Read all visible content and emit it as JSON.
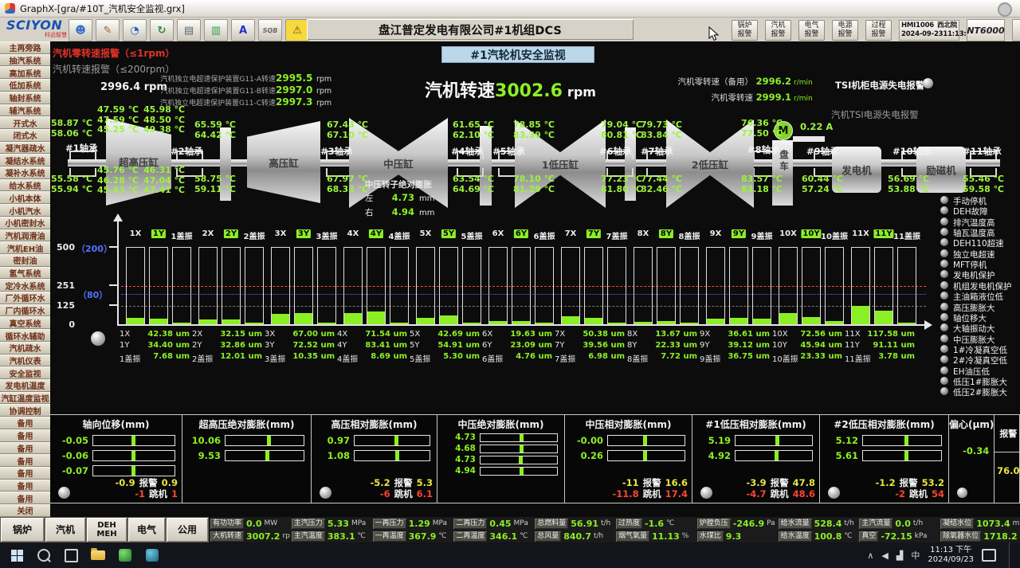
{
  "window": {
    "title": "GraphX-[gra/#10T_汽机安全监视.grx]"
  },
  "toolbar": {
    "brand": "SCIYON",
    "brand_sub": "科远智慧",
    "icons": [
      {
        "name": "user-group-icon",
        "glyph": "☻",
        "color": "#3a6fd0"
      },
      {
        "name": "graphic-editor-icon",
        "glyph": "✎",
        "color": "#a85a28"
      },
      {
        "name": "trend-view-icon",
        "glyph": "◔",
        "color": "#2a5fc4"
      },
      {
        "name": "history-recall-icon",
        "glyph": "↻",
        "color": "#2e8b3a"
      },
      {
        "name": "report-icon",
        "glyph": "▤",
        "color": "#5a6670"
      },
      {
        "name": "ledger-icon",
        "glyph": "▥",
        "color": "#2f9e52"
      },
      {
        "name": "formula-icon",
        "glyph": "A",
        "color": "#2233c0"
      },
      {
        "name": "sqb-tool-icon",
        "glyph": "SQB",
        "color": "#6a6a62"
      },
      {
        "name": "alarm-bell-icon",
        "glyph": "⚠",
        "color": "#7a4a00",
        "bg": "#f5d93e"
      }
    ],
    "center_title": "盘江普定发电有限公司#1机组DCS",
    "alarm_buttons": [
      {
        "line1": "锅炉",
        "line2": "报警"
      },
      {
        "line1": "汽机",
        "line2": "报警"
      },
      {
        "line1": "电气",
        "line2": "报警"
      },
      {
        "line1": "电源",
        "line2": "报警"
      },
      {
        "line1": "过程",
        "line2": "报警"
      }
    ],
    "hmi_id": "HMI1006",
    "station": "西北院",
    "date": "2024-09-23",
    "time": "11:13:20",
    "system": "NT6000",
    "close_label": "✕"
  },
  "left_nav": [
    "主再旁路",
    "抽汽系统",
    "高加系统",
    "低加系统",
    "轴封系统",
    "辅汽系统",
    "开式水",
    "闭式水",
    "凝汽器疏水",
    "凝结水系统",
    "凝补水系统",
    "给水系统",
    "小机本体",
    "小机汽水",
    "小机密封水",
    "汽机润滑油",
    "汽机EH油",
    "密封油",
    "氢气系统",
    "定冷水系统",
    "厂外循环水",
    "厂内循环水",
    "真空系统",
    "循环水辅助",
    "汽机疏水",
    "汽机仪表",
    "安全监视",
    "发电机温度",
    "汽缸温度监视",
    "协调控制",
    "备用",
    "备用",
    "备用",
    "备用",
    "备用",
    "备用",
    "备用",
    "关闭"
  ],
  "header": {
    "zero_alarm": "汽机零转速报警（≤1rpm）",
    "speed_alarm": "汽机转速报警（≤200rpm）",
    "aux_speed": "2996.4 rpm",
    "overspeed": [
      {
        "label": "汽机独立电超速保护装置G11-A转速",
        "value": "2995.5",
        "unit": "rpm"
      },
      {
        "label": "汽机独立电超速保护装置G11-B转速",
        "value": "2997.0",
        "unit": "rpm"
      },
      {
        "label": "汽机独立电超速保护装置G11-C转速",
        "value": "2997.3",
        "unit": "rpm"
      }
    ],
    "page_title": "#1汽轮机安全监视",
    "speed_label": "汽机转速",
    "speed_value": "3002.6",
    "speed_unit": "rpm",
    "zero_rows": [
      {
        "label": "汽机零转速（备用）",
        "value": "2996.2",
        "unit": "r/min"
      },
      {
        "label": "汽机零转速",
        "value": "2999.1",
        "unit": "r/min"
      }
    ],
    "tsi_cabinet_alarm": "TSI机柜电源失电报警",
    "tsi_power_alarm": "汽机TSI电源失电报警"
  },
  "turbine": {
    "temp_unit": "℃",
    "bearings": [
      {
        "label": "#1轴承",
        "top": [
          "58.87",
          "58.06"
        ],
        "bottom": [
          "55.58",
          "55.94"
        ]
      },
      {
        "label": "#2轴承",
        "top": [
          "65.59",
          "64.42"
        ],
        "bottom": [
          "58.75",
          "59.11"
        ]
      },
      {
        "label": "#3轴承",
        "top": [
          "67.43",
          "67.10"
        ],
        "bottom": [
          "67.97",
          "68.33"
        ]
      },
      {
        "label": "#4轴承",
        "top": [
          "61.65",
          "62.10"
        ],
        "bottom": [
          "63.54",
          "64.69"
        ]
      },
      {
        "label": "#5轴承",
        "top": [
          "78.85",
          "83.39"
        ],
        "bottom": [
          "78.10",
          "81.29"
        ]
      },
      {
        "label": "#6轴承",
        "top": [
          "79.04",
          "80.81"
        ],
        "bottom": [
          "77.23",
          "81.80"
        ]
      },
      {
        "label": "#7轴承",
        "top": [
          "79.73",
          "83.84"
        ],
        "bottom": [
          "77.44",
          "82.46"
        ]
      },
      {
        "label": "#8轴承",
        "top": [
          "76.36",
          "77.50"
        ],
        "bottom": [
          "83.57",
          "83.18"
        ]
      },
      {
        "label": "#9轴承",
        "top": [],
        "bottom": [
          "60.44",
          "57.24"
        ]
      },
      {
        "label": "#10轴承",
        "top": [],
        "bottom": [
          "56.69",
          "53.88"
        ]
      },
      {
        "label": "#11轴承",
        "top": [],
        "bottom": [
          "55.46",
          "59.58"
        ]
      }
    ],
    "uhp_temps": {
      "top_left": [
        "47.59",
        "47.59",
        "45.25"
      ],
      "top_right": [
        "45.98",
        "48.50",
        "49.38"
      ],
      "bottom_left": [
        "45.76",
        "46.28",
        "45.43"
      ],
      "bottom_right": [
        "46.31",
        "47.04",
        "47.41"
      ]
    },
    "cylinders": [
      {
        "label": "超高压缸"
      },
      {
        "label": "高压缸"
      },
      {
        "label": "中压缸"
      },
      {
        "label": "1低压缸"
      },
      {
        "label": "2低压缸"
      },
      {
        "label": "发电机"
      },
      {
        "label": "励磁机"
      }
    ],
    "turning_gear": {
      "label": "盘车",
      "motor_symbol": "M",
      "current": "0.22",
      "current_unit": "A"
    },
    "ip_expansion": {
      "title": "中压转子绝对膨胀",
      "rows": [
        {
          "label": "左",
          "value": "4.73",
          "unit": "mm"
        },
        {
          "label": "右",
          "value": "4.94",
          "unit": "mm"
        }
      ]
    }
  },
  "chart_data": {
    "type": "bar",
    "title": "",
    "unit": "um",
    "categories": [
      "1X",
      "1Y",
      "1盖振",
      "2X",
      "2Y",
      "2盖振",
      "3X",
      "3Y",
      "3盖振",
      "4X",
      "4Y",
      "4盖振",
      "5X",
      "5Y",
      "5盖振",
      "6X",
      "6Y",
      "6盖振",
      "7X",
      "7Y",
      "7盖振",
      "8X",
      "8Y",
      "8盖振",
      "9X",
      "9Y",
      "9盖振",
      "10X",
      "10Y",
      "10盖振",
      "11X",
      "11Y",
      "11盖振"
    ],
    "values": [
      "42.38",
      "34.40",
      "7.68",
      "32.15",
      "32.86",
      "12.01",
      "67.00",
      "72.52",
      "10.35",
      "71.54",
      "83.41",
      "8.69",
      "42.69",
      "54.91",
      "5.30",
      "19.63",
      "23.09",
      "4.76",
      "50.38",
      "39.56",
      "6.98",
      "13.67",
      "22.33",
      "7.72",
      "36.61",
      "39.12",
      "36.75",
      "72.56",
      "45.94",
      "23.33",
      "117.58",
      "91.11",
      "3.78"
    ],
    "ylim": [
      0,
      500
    ],
    "axis_labels": [
      {
        "text": "500",
        "secondary": false
      },
      {
        "text": "（200）",
        "secondary": true
      },
      {
        "text": "251",
        "secondary": false
      },
      {
        "text": "（80）",
        "secondary": true
      },
      {
        "text": "125",
        "secondary": false
      },
      {
        "text": "0",
        "secondary": false
      }
    ],
    "reference_lines": [
      {
        "y": 251,
        "color": "#ff4444",
        "style": "dashed"
      },
      {
        "y": 200,
        "color": "#5570ff",
        "style": "dotted"
      },
      {
        "y": 125,
        "color": "#cfcfcf",
        "style": "dashed"
      }
    ],
    "grid": false,
    "legend": false
  },
  "right_alarms": [
    "手动停机",
    "DEH故障",
    "排汽温度高",
    "轴瓦温度高",
    "DEH110超速",
    "独立电超速",
    "MFT停机",
    "发电机保护",
    "机组发电机保护",
    "主油箱液位低",
    "高压膨胀大",
    "轴位移大",
    "大轴振动大",
    "中压膨胀大",
    "1#冷凝真空低",
    "2#冷凝真空低",
    "EH油压低",
    "低压1#膨胀大",
    "低压2#膨胀大"
  ],
  "panels": [
    {
      "title": "轴向位移(mm)",
      "split": true,
      "indicator": true,
      "gauges": [
        {
          "v": "-0.05",
          "pct": 49
        },
        {
          "v": "-0.06",
          "pct": 49
        },
        {
          "v": "-0.07",
          "pct": 49
        }
      ],
      "alarm": {
        "low": "-0.9",
        "label": "报警",
        "high": "0.9"
      },
      "trip": {
        "low": "-1",
        "label": "跳机",
        "high": "1"
      }
    },
    {
      "title": "超高压绝对膨胀(mm)",
      "split": false,
      "indicator": false,
      "gauges": [
        {
          "v": "10.06",
          "pct": 55
        },
        {
          "v": "9.53",
          "pct": 53
        }
      ]
    },
    {
      "title": "高压相对膨胀(mm)",
      "split": false,
      "indicator": true,
      "gauges": [
        {
          "v": "0.97",
          "pct": 55
        },
        {
          "v": "1.08",
          "pct": 56
        }
      ],
      "alarm": {
        "low": "-5.2",
        "label": "报警",
        "high": "5.3"
      },
      "trip": {
        "low": "-6",
        "label": "跳机",
        "high": "6.1"
      }
    },
    {
      "title": "中压绝对膨胀(mm)",
      "split": false,
      "indicator": false,
      "gauges": [
        {
          "v": "4.73",
          "pct": 53
        },
        {
          "v": "4.68",
          "pct": 53
        },
        {
          "v": "4.73",
          "pct": 52
        },
        {
          "v": "4.94",
          "pct": 53
        }
      ]
    },
    {
      "title": "中压相对膨胀(mm)",
      "split": true,
      "indicator": false,
      "gauges": [
        {
          "v": "-0.00",
          "pct": 48
        },
        {
          "v": "0.26",
          "pct": 48
        }
      ],
      "alarm": {
        "low": "-11",
        "label": "报警",
        "high": "16.6"
      },
      "trip": {
        "low": "-11.8",
        "label": "跳机",
        "high": "17.4"
      }
    },
    {
      "title": "#1低压相对膨胀(mm)",
      "split": false,
      "indicator": true,
      "gauges": [
        {
          "v": "5.19",
          "pct": 54
        },
        {
          "v": "4.92",
          "pct": 53
        }
      ],
      "alarm": {
        "low": "-3.9",
        "label": "报警",
        "high": "47.8"
      },
      "trip": {
        "low": "-4.7",
        "label": "跳机",
        "high": "48.6"
      }
    },
    {
      "title": "#2低压相对膨胀(mm)",
      "split": false,
      "indicator": true,
      "gauges": [
        {
          "v": "5.12",
          "pct": 55
        },
        {
          "v": "5.61",
          "pct": 55
        }
      ],
      "alarm": {
        "low": "-1.2",
        "label": "报警",
        "high": "53.2"
      },
      "trip": {
        "low": "-2",
        "label": "跳机",
        "high": "54"
      }
    }
  ],
  "eccentricity": {
    "title": "偏心(μm)",
    "value": "-0.34",
    "alarm_label": "报警",
    "alarm_value": "76.0",
    "indicator": true
  },
  "bottom_tabs": [
    {
      "label": "锅炉"
    },
    {
      "label": "汽机"
    },
    {
      "label": "DEH\nMEH"
    },
    {
      "label": "电气"
    },
    {
      "label": "公用"
    }
  ],
  "params": {
    "row1": [
      {
        "label": "有功功率",
        "value": "0.0",
        "unit": "MW"
      },
      {
        "label": "主汽压力",
        "value": "5.33",
        "unit": "MPa"
      },
      {
        "label": "一再压力",
        "value": "1.29",
        "unit": "MPa"
      },
      {
        "label": "二再压力",
        "value": "0.45",
        "unit": "MPa"
      },
      {
        "label": "总燃料量",
        "value": "56.91",
        "unit": "t/h"
      },
      {
        "label": "过热度",
        "value": "-1.6",
        "unit": "℃"
      },
      {
        "label": "炉膛负压",
        "value": "-246.9",
        "unit": "Pa"
      },
      {
        "label": "给水流量",
        "value": "528.4",
        "unit": "t/h"
      },
      {
        "label": "主汽流量",
        "value": "0.0",
        "unit": "t/h"
      },
      {
        "label": "凝结水位",
        "value": "1073.4",
        "unit": "mm"
      }
    ],
    "row2": [
      {
        "label": "大机转速",
        "value": "3007.2",
        "unit": "rpm"
      },
      {
        "label": "主汽温度",
        "value": "383.1",
        "unit": "℃"
      },
      {
        "label": "一再温度",
        "value": "367.9",
        "unit": "℃"
      },
      {
        "label": "二再温度",
        "value": "346.1",
        "unit": "℃"
      },
      {
        "label": "总风量",
        "value": "840.7",
        "unit": "t/h"
      },
      {
        "label": "烟气氧量",
        "value": "11.13",
        "unit": "%"
      },
      {
        "label": "水煤比",
        "value": "9.3",
        "unit": ""
      },
      {
        "label": "给水温度",
        "value": "100.8",
        "unit": "℃"
      },
      {
        "label": "真空",
        "value": "-72.15",
        "unit": "kPa"
      },
      {
        "label": "除氧器水位",
        "value": "1718.2",
        "unit": "mm"
      }
    ]
  },
  "taskbar": {
    "time": "11:13 下午",
    "date": "2024/09/23",
    "tray": [
      {
        "name": "tray-expand-icon",
        "glyph": "∧"
      },
      {
        "name": "volume-icon",
        "glyph": "◀"
      },
      {
        "name": "network-icon",
        "glyph": "▟"
      },
      {
        "name": "ime-indicator",
        "glyph": "中"
      }
    ]
  }
}
